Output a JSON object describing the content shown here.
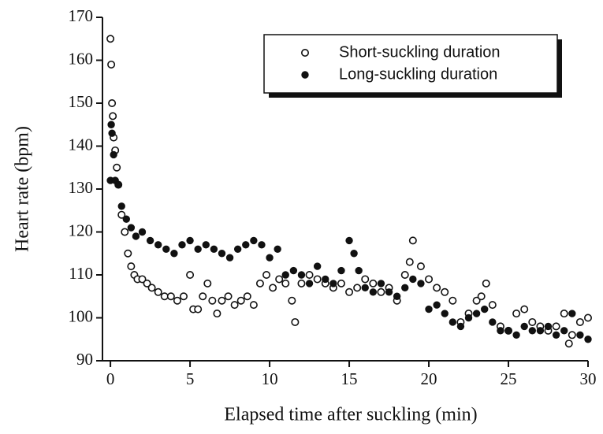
{
  "chart_data": {
    "type": "scatter",
    "xlabel": "Elapsed time after suckling (min)",
    "ylabel": "Heart rate (bpm)",
    "xlim": [
      -0.5,
      30
    ],
    "xticks": [
      0,
      5,
      10,
      15,
      20,
      25,
      30
    ],
    "ylim": [
      90,
      170
    ],
    "yticks": [
      90,
      100,
      110,
      120,
      130,
      140,
      150,
      160,
      170
    ],
    "legend": "upper right",
    "series": [
      {
        "name": "Short-suckling duration",
        "color": "#111111",
        "marker": "open",
        "x": [
          0,
          0.05,
          0.1,
          0.15,
          0.2,
          0.3,
          0.4,
          0.5,
          0.7,
          0.9,
          1.1,
          1.3,
          1.5,
          1.7,
          2.0,
          2.3,
          2.6,
          3.0,
          3.4,
          3.8,
          4.2,
          4.6,
          5.0,
          5.2,
          5.5,
          5.8,
          6.1,
          6.4,
          6.7,
          7.0,
          7.4,
          7.8,
          8.2,
          8.6,
          9.0,
          9.4,
          9.8,
          10.2,
          10.6,
          11.0,
          11.4,
          11.6,
          12.0,
          12.5,
          13.0,
          13.5,
          14.0,
          14.5,
          15.0,
          15.5,
          16.0,
          16.5,
          17.0,
          17.5,
          18.0,
          18.5,
          18.8,
          19.0,
          19.5,
          20.0,
          20.5,
          21.0,
          21.5,
          22.0,
          22.5,
          23.0,
          23.3,
          23.6,
          24.0,
          24.5,
          25.0,
          25.5,
          26.0,
          26.5,
          27.0,
          27.5,
          28.0,
          28.5,
          28.8,
          29.0,
          29.5,
          30.0
        ],
        "values": [
          165,
          159,
          150,
          147,
          142,
          139,
          135,
          131,
          124,
          120,
          115,
          112,
          110,
          109,
          109,
          108,
          107,
          106,
          105,
          105,
          104,
          105,
          110,
          102,
          102,
          105,
          108,
          104,
          101,
          104,
          105,
          103,
          104,
          105,
          103,
          108,
          110,
          107,
          109,
          108,
          104,
          99,
          108,
          110,
          109,
          108,
          107,
          108,
          106,
          107,
          109,
          108,
          106,
          107,
          104,
          110,
          113,
          118,
          112,
          109,
          107,
          106,
          104,
          99,
          101,
          104,
          105,
          108,
          103,
          98,
          97,
          101,
          102,
          99,
          98,
          97,
          98,
          101,
          94,
          96,
          99,
          100
        ]
      },
      {
        "name": "Long-suckling duration",
        "color": "#111111",
        "marker": "filled",
        "x": [
          0,
          0.05,
          0.1,
          0.2,
          0.3,
          0.5,
          0.7,
          1.0,
          1.3,
          1.6,
          2.0,
          2.5,
          3.0,
          3.5,
          4.0,
          4.5,
          5.0,
          5.5,
          6.0,
          6.5,
          7.0,
          7.5,
          8.0,
          8.5,
          9.0,
          9.5,
          10.0,
          10.5,
          11.0,
          11.5,
          12.0,
          12.5,
          13.0,
          13.5,
          14.0,
          14.5,
          15.0,
          15.3,
          15.6,
          16.0,
          16.5,
          17.0,
          17.5,
          18.0,
          18.5,
          19.0,
          19.5,
          20.0,
          20.5,
          21.0,
          21.5,
          22.0,
          22.5,
          23.0,
          23.5,
          24.0,
          24.5,
          25.0,
          25.5,
          26.0,
          26.5,
          27.0,
          27.5,
          28.0,
          28.5,
          29.0,
          29.5,
          30.0
        ],
        "values": [
          132,
          145,
          143,
          138,
          132,
          131,
          126,
          123,
          121,
          119,
          120,
          118,
          117,
          116,
          115,
          117,
          118,
          116,
          117,
          116,
          115,
          114,
          116,
          117,
          118,
          117,
          114,
          116,
          110,
          111,
          110,
          108,
          112,
          109,
          108,
          111,
          118,
          115,
          111,
          107,
          106,
          108,
          106,
          105,
          107,
          109,
          108,
          102,
          103,
          101,
          99,
          98,
          100,
          101,
          102,
          99,
          97,
          97,
          96,
          98,
          97,
          97,
          98,
          96,
          97,
          101,
          96,
          95
        ]
      }
    ]
  }
}
